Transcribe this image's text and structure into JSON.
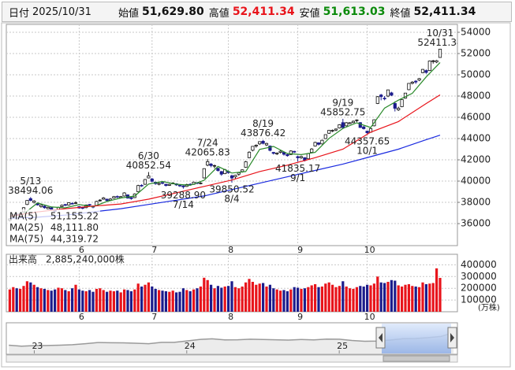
{
  "header": {
    "date_label": "日付",
    "date": "2025/10/31",
    "fields": [
      {
        "label": "始値",
        "value": "51,629.80"
      },
      {
        "label": "高値",
        "value": "52,411.34"
      },
      {
        "label": "安値",
        "value": "51,613.03"
      },
      {
        "label": "終値",
        "value": "52,411.34"
      }
    ]
  },
  "chart_data": {
    "type": "candlestick",
    "xlim": [
      -1,
      129
    ],
    "xticks": [
      {
        "value": 20,
        "label": "6"
      },
      {
        "value": 41,
        "label": "7"
      },
      {
        "value": 63,
        "label": "8"
      },
      {
        "value": 83,
        "label": "9"
      },
      {
        "value": 103,
        "label": "10"
      }
    ],
    "ylim": [
      33930,
      54740
    ],
    "yticks": [
      36000,
      38000,
      40000,
      42000,
      44000,
      46000,
      48000,
      50000,
      52000,
      54000
    ],
    "grid": true,
    "up_color": "#ffffff",
    "down_color": "#1c1c8c",
    "ohlc": [
      [
        36300,
        36500,
        36200,
        36450
      ],
      [
        36600,
        36900,
        36550,
        36830
      ],
      [
        36900,
        36950,
        36700,
        36780
      ],
      [
        36750,
        37000,
        36700,
        36930
      ],
      [
        37100,
        37550,
        37050,
        37500
      ],
      [
        37800,
        38200,
        37750,
        38180
      ],
      [
        38350,
        38494.06,
        38100,
        38180
      ],
      [
        38000,
        38200,
        37900,
        38130
      ],
      [
        37900,
        37950,
        37700,
        37760
      ],
      [
        37600,
        37800,
        37500,
        37750
      ],
      [
        37650,
        37700,
        37400,
        37500
      ],
      [
        37400,
        37600,
        37350,
        37530
      ],
      [
        37500,
        37550,
        37200,
        37300
      ],
      [
        37250,
        37350,
        37100,
        37160
      ],
      [
        37300,
        37600,
        37250,
        37530
      ],
      [
        37600,
        37800,
        37550,
        37720
      ],
      [
        37800,
        37850,
        37650,
        37720
      ],
      [
        37750,
        38000,
        37700,
        37960
      ],
      [
        37900,
        38000,
        37800,
        37850
      ],
      [
        37900,
        38100,
        37850,
        37960
      ],
      [
        37600,
        37650,
        37400,
        37470
      ],
      [
        37500,
        37600,
        37350,
        37450
      ],
      [
        37500,
        37800,
        37450,
        37750
      ],
      [
        37800,
        37850,
        37650,
        37740
      ],
      [
        37650,
        37700,
        37450,
        37550
      ],
      [
        37700,
        38150,
        37650,
        38090
      ],
      [
        38150,
        38300,
        38050,
        38210
      ],
      [
        38300,
        38500,
        38250,
        38420
      ],
      [
        38300,
        38350,
        38100,
        38170
      ],
      [
        38200,
        38400,
        38150,
        38310
      ],
      [
        38400,
        38600,
        38350,
        38540
      ],
      [
        38550,
        38650,
        38400,
        38500
      ],
      [
        38450,
        38600,
        38400,
        38540
      ],
      [
        38600,
        38950,
        38550,
        38890
      ],
      [
        38700,
        38750,
        38350,
        38400
      ],
      [
        38450,
        38500,
        38250,
        38350
      ],
      [
        38450,
        38850,
        38400,
        38790
      ],
      [
        39000,
        39650,
        38950,
        39580
      ],
      [
        39600,
        39700,
        39450,
        39580
      ],
      [
        39700,
        40200,
        39650,
        40150
      ],
      [
        40300,
        40852.54,
        40250,
        40490
      ],
      [
        40200,
        40300,
        39900,
        39980
      ],
      [
        39900,
        39950,
        39650,
        39760
      ],
      [
        39700,
        39850,
        39600,
        39780
      ],
      [
        39850,
        39950,
        39700,
        39810
      ],
      [
        39700,
        39750,
        39500,
        39580
      ],
      [
        39600,
        39750,
        39550,
        39690
      ],
      [
        39750,
        39900,
        39700,
        39820
      ],
      [
        39750,
        39800,
        39550,
        39640
      ],
      [
        39600,
        39650,
        39450,
        39570
      ],
      [
        39550,
        39600,
        39288.9,
        39460
      ],
      [
        39500,
        39750,
        39450,
        39680
      ],
      [
        39700,
        39800,
        39600,
        39660
      ],
      [
        39700,
        39950,
        39650,
        39900
      ],
      [
        39850,
        39900,
        39700,
        39820
      ],
      [
        39750,
        39900,
        39700,
        39820
      ],
      [
        40300,
        41200,
        40250,
        41170
      ],
      [
        41500,
        42065.83,
        41400,
        41830
      ],
      [
        41600,
        41700,
        41300,
        41460
      ],
      [
        41400,
        41550,
        41200,
        41460
      ],
      [
        41200,
        41250,
        40900,
        40990
      ],
      [
        40900,
        40950,
        40500,
        40650
      ],
      [
        40700,
        41150,
        40650,
        41070
      ],
      [
        40900,
        41000,
        40700,
        40800
      ],
      [
        40500,
        40600,
        39850.52,
        40290
      ],
      [
        40400,
        40600,
        40200,
        40550
      ],
      [
        40650,
        40850,
        40500,
        40790
      ],
      [
        40900,
        41100,
        40800,
        41060
      ],
      [
        41300,
        41900,
        41250,
        41820
      ],
      [
        42200,
        42800,
        42150,
        42720
      ],
      [
        42900,
        43300,
        42800,
        43270
      ],
      [
        43300,
        43450,
        43150,
        43380
      ],
      [
        43500,
        43750,
        43400,
        43710
      ],
      [
        43750,
        43876.42,
        43450,
        43550
      ],
      [
        43400,
        43600,
        43300,
        43540
      ],
      [
        43300,
        43350,
        42800,
        42890
      ],
      [
        42700,
        42750,
        42500,
        42610
      ],
      [
        42550,
        42700,
        42450,
        42630
      ],
      [
        42700,
        42900,
        42600,
        42810
      ],
      [
        42700,
        42750,
        42400,
        42520
      ],
      [
        42500,
        42550,
        42300,
        42390
      ],
      [
        42500,
        42900,
        42450,
        42830
      ],
      [
        42800,
        42850,
        42650,
        42720
      ],
      [
        42300,
        42400,
        41835.17,
        42190
      ],
      [
        42200,
        42400,
        42100,
        42310
      ],
      [
        42200,
        42250,
        41850,
        41940
      ],
      [
        42100,
        42650,
        42050,
        42580
      ],
      [
        42700,
        43100,
        42650,
        43020
      ],
      [
        43300,
        43700,
        43250,
        43640
      ],
      [
        43600,
        43650,
        43350,
        43460
      ],
      [
        43500,
        43900,
        43450,
        43840
      ],
      [
        44000,
        44400,
        43950,
        44370
      ],
      [
        44500,
        44800,
        44450,
        44770
      ],
      [
        44700,
        44850,
        44600,
        44770
      ],
      [
        44800,
        44950,
        44700,
        44900
      ],
      [
        45000,
        45350,
        44950,
        45300
      ],
      [
        45500,
        45852.75,
        44900,
        45040
      ],
      [
        45200,
        45550,
        45150,
        45490
      ],
      [
        45400,
        45550,
        45350,
        45490
      ],
      [
        45500,
        45700,
        45450,
        45630
      ],
      [
        45700,
        45800,
        45550,
        45750
      ],
      [
        45500,
        45550,
        45000,
        45040
      ],
      [
        45100,
        45200,
        44850,
        44930
      ],
      [
        44700,
        44750,
        44357.65,
        44550
      ],
      [
        44600,
        45000,
        44550,
        44940
      ],
      [
        45200,
        45800,
        45150,
        45770
      ],
      [
        47300,
        48000,
        47250,
        47940
      ],
      [
        48100,
        48200,
        47600,
        47950
      ],
      [
        47800,
        48000,
        47600,
        47730
      ],
      [
        48000,
        48600,
        47900,
        48580
      ],
      [
        48300,
        48400,
        48000,
        48080
      ],
      [
        47300,
        47500,
        46550,
        46850
      ],
      [
        46700,
        47000,
        46600,
        46850
      ],
      [
        47000,
        47700,
        46950,
        47670
      ],
      [
        47800,
        48300,
        47750,
        48280
      ],
      [
        48600,
        49200,
        48550,
        49190
      ],
      [
        49200,
        49400,
        49100,
        49310
      ],
      [
        49400,
        49500,
        49150,
        49320
      ],
      [
        49500,
        49700,
        49400,
        49640
      ],
      [
        50200,
        50550,
        50150,
        50510
      ],
      [
        50400,
        50500,
        50100,
        50220
      ],
      [
        50400,
        51350,
        50350,
        51300
      ],
      [
        51300,
        51400,
        51050,
        51310
      ],
      [
        51200,
        51400,
        51100,
        51326
      ],
      [
        51629.8,
        52411.34,
        51613.03,
        52411.34
      ]
    ],
    "series": [
      {
        "name": "MA(5)",
        "color": "#2a8a2a",
        "last_label": "51,155.22",
        "x": [
          4,
          8,
          12,
          16,
          20,
          24,
          28,
          32,
          36,
          40,
          44,
          48,
          52,
          56,
          60,
          64,
          68,
          72,
          76,
          80,
          84,
          88,
          92,
          96,
          100,
          104,
          108,
          112,
          116,
          120,
          124
        ],
        "values": [
          36898,
          37950,
          37568,
          37486,
          37792,
          37592,
          38088,
          38412,
          38594,
          39718,
          39964,
          39708,
          39602,
          40074,
          41382,
          40760,
          40902,
          42980,
          43260,
          42592,
          42488,
          42698,
          44016,
          44956,
          45480,
          45042,
          46866,
          47618,
          48260,
          49800,
          51155.22
        ]
      },
      {
        "name": "MA(25)",
        "color": "#e8141b",
        "last_label": "48,111.80",
        "x": [
          0,
          8,
          16,
          24,
          32,
          40,
          48,
          56,
          64,
          72,
          80,
          88,
          96,
          104,
          112,
          120,
          124
        ],
        "values": [
          36700,
          37100,
          37400,
          37650,
          37850,
          38300,
          38900,
          39500,
          40100,
          40900,
          41500,
          42200,
          43000,
          44600,
          45600,
          47300,
          48111.8
        ]
      },
      {
        "name": "MA(75)",
        "color": "#1a2ae0",
        "last_label": "44,319.72",
        "x": [
          0,
          8,
          16,
          24,
          32,
          40,
          48,
          56,
          64,
          72,
          80,
          88,
          96,
          104,
          112,
          120,
          124
        ],
        "values": [
          36500,
          36600,
          36800,
          37100,
          37400,
          37800,
          38200,
          38600,
          39200,
          39800,
          40400,
          41000,
          41600,
          42300,
          43000,
          43900,
          44319.72
        ]
      }
    ],
    "annotations": [
      {
        "x": 6,
        "date": "5/13",
        "value": 38494.06
      },
      {
        "x": 40,
        "date": "6/30",
        "value": 40852.54
      },
      {
        "x": 50,
        "date": "7/14",
        "value": 39288.9,
        "value_label": "39288.90"
      },
      {
        "x": 57,
        "date": "7/24",
        "value": 42065.83
      },
      {
        "x": 64,
        "date": "8/4",
        "value": 39850.52
      },
      {
        "x": 73,
        "date": "8/19",
        "value": 43876.42
      },
      {
        "x": 83,
        "date": "9/1",
        "value": 41835.17
      },
      {
        "x": 96,
        "date": "9/19",
        "value": 45852.75
      },
      {
        "x": 103,
        "date": "10/1",
        "value": 44357.65
      },
      {
        "x": 124,
        "date": "10/31",
        "value": 52411.34
      }
    ],
    "volume": {
      "label": "出来高",
      "total": "2,885,240,000株",
      "unit": "(万株)",
      "ylim": [
        0,
        490000
      ],
      "yticks": [
        100000,
        200000,
        300000,
        400000
      ],
      "up_color": "#e8141b",
      "down_color": "#1c1c8c",
      "values": [
        190000,
        210000,
        200000,
        195000,
        220000,
        260000,
        250000,
        230000,
        210000,
        200000,
        195000,
        185000,
        180000,
        190000,
        205000,
        200000,
        185000,
        175000,
        200000,
        230000,
        190000,
        180000,
        175000,
        185000,
        170000,
        195000,
        200000,
        185000,
        170000,
        180000,
        175000,
        180000,
        165000,
        190000,
        185000,
        175000,
        190000,
        240000,
        215000,
        230000,
        250000,
        215000,
        195000,
        185000,
        180000,
        175000,
        170000,
        180000,
        165000,
        170000,
        200000,
        185000,
        175000,
        190000,
        200000,
        215000,
        290000,
        270000,
        230000,
        200000,
        220000,
        205000,
        215000,
        220000,
        260000,
        210000,
        200000,
        215000,
        250000,
        280000,
        255000,
        230000,
        240000,
        245000,
        215000,
        230000,
        200000,
        190000,
        180000,
        185000,
        175000,
        190000,
        210000,
        205000,
        195000,
        200000,
        210000,
        225000,
        235000,
        210000,
        215000,
        240000,
        250000,
        230000,
        210000,
        220000,
        260000,
        215000,
        200000,
        195000,
        210000,
        220000,
        215000,
        230000,
        225000,
        240000,
        300000,
        250000,
        245000,
        255000,
        270000,
        265000,
        225000,
        215000,
        230000,
        235000,
        220000,
        215000,
        210000,
        250000,
        235000,
        240000,
        245000,
        370000,
        288524
      ]
    },
    "navigator": {
      "color": "#9a9a9a",
      "xlim": [
        -0.2,
        35.3
      ],
      "ylim": [
        12000,
        70000
      ],
      "xticks": [
        {
          "value": 2,
          "label": "23"
        },
        {
          "value": 14,
          "label": "24"
        },
        {
          "value": 26,
          "label": "25"
        }
      ],
      "values": [
        28000,
        26100,
        27300,
        27400,
        28000,
        28900,
        30900,
        33200,
        32700,
        32600,
        31900,
        30900,
        33500,
        33500,
        36300,
        39200,
        40400,
        38400,
        38500,
        39600,
        39100,
        38600,
        37900,
        39100,
        38200,
        39900,
        39600,
        37200,
        35600,
        36000,
        37900,
        40500,
        41000,
        42700,
        44900,
        52400
      ]
    }
  }
}
